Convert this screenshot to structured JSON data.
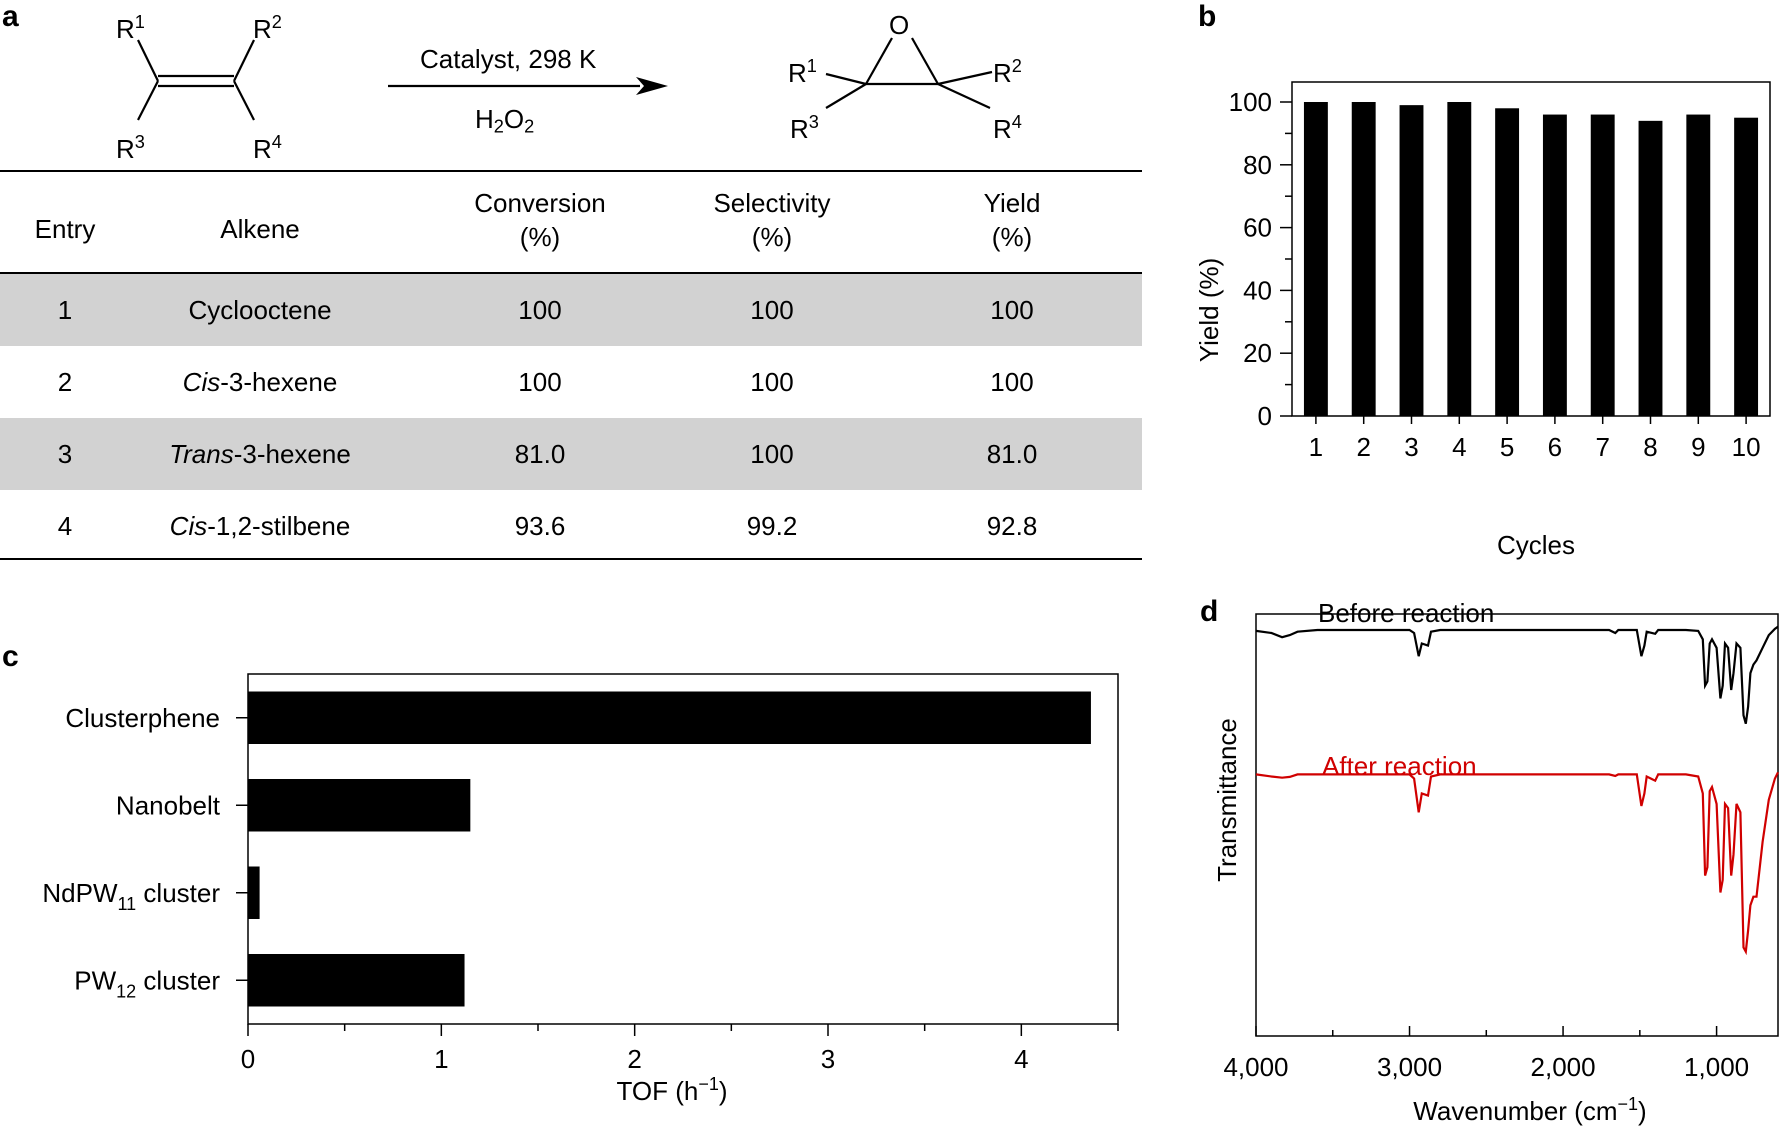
{
  "panels": {
    "a": "a",
    "b": "b",
    "c": "c",
    "d": "d"
  },
  "reaction": {
    "conditions_top": "Catalyst, 298 K",
    "reagent": {
      "main": "H",
      "sub1": "2",
      "mid": "O",
      "sub2": "2"
    },
    "oxygen": "O",
    "r_label": "R",
    "r_nums": [
      "1",
      "2",
      "3",
      "4"
    ]
  },
  "table": {
    "headers": [
      {
        "line1": "Entry",
        "line2": ""
      },
      {
        "line1": "Alkene",
        "line2": ""
      },
      {
        "line1": "Conversion",
        "line2": "(%)"
      },
      {
        "line1": "Selectivity",
        "line2": "(%)"
      },
      {
        "line1": "Yield",
        "line2": "(%)"
      }
    ],
    "rows": [
      {
        "entry": "1",
        "alkene_prefix": "",
        "alkene_rest": "Cyclooctene",
        "conversion": "100",
        "selectivity": "100",
        "yield": "100"
      },
      {
        "entry": "2",
        "alkene_prefix": "Cis",
        "alkene_rest": "-3-hexene",
        "conversion": "100",
        "selectivity": "100",
        "yield": "100"
      },
      {
        "entry": "3",
        "alkene_prefix": "Trans",
        "alkene_rest": "-3-hexene",
        "conversion": "81.0",
        "selectivity": "100",
        "yield": "81.0"
      },
      {
        "entry": "4",
        "alkene_prefix": "Cis",
        "alkene_rest": "-1,2-stilbene",
        "conversion": "93.6",
        "selectivity": "99.2",
        "yield": "92.8"
      }
    ]
  },
  "chart_data": [
    {
      "panel": "b",
      "type": "bar",
      "categories": [
        "1",
        "2",
        "3",
        "4",
        "5",
        "6",
        "7",
        "8",
        "9",
        "10"
      ],
      "values": [
        100,
        100,
        99,
        100,
        98,
        96,
        96,
        94,
        96,
        95
      ],
      "xlabel": "Cycles",
      "ylabel": "Yield (%)",
      "ylim": [
        0,
        100
      ],
      "yticks": [
        0,
        20,
        40,
        60,
        80,
        100
      ],
      "colors": {
        "bar": "#000000"
      }
    },
    {
      "panel": "c",
      "type": "bar",
      "orientation": "horizontal",
      "categories": [
        {
          "main": "Clusterphene",
          "sub": "",
          "tail": ""
        },
        {
          "main": "Nanobelt",
          "sub": "",
          "tail": ""
        },
        {
          "main": "NdPW",
          "sub": "11",
          "tail": " cluster"
        },
        {
          "main": "PW",
          "sub": "12",
          "tail": " cluster"
        }
      ],
      "values": [
        4.36,
        1.15,
        0.06,
        1.12
      ],
      "xlabel_main": "TOF (h",
      "xlabel_sup": "−1",
      "xlabel_tail": ")",
      "xlim": [
        0,
        4.5
      ],
      "xticks": [
        0,
        1,
        2,
        3,
        4
      ],
      "colors": {
        "bar": "#000000"
      }
    },
    {
      "panel": "d",
      "type": "line",
      "xlabel_main": "Wavenumber (cm",
      "xlabel_sup": "−1",
      "xlabel_tail": ")",
      "ylabel": "Transmittance",
      "xlim": [
        4000,
        600
      ],
      "xticks": [
        4000,
        3000,
        2000,
        1000
      ],
      "xtick_labels": [
        "4,000",
        "3,000",
        "2,000",
        "1,000"
      ],
      "series": [
        {
          "name": "Before reaction",
          "color": "#000000",
          "points": [
            [
              4000,
              0.96
            ],
            [
              3900,
              0.955
            ],
            [
              3830,
              0.945
            ],
            [
              3780,
              0.95
            ],
            [
              3730,
              0.958
            ],
            [
              3600,
              0.962
            ],
            [
              3400,
              0.962
            ],
            [
              3000,
              0.962
            ],
            [
              2970,
              0.955
            ],
            [
              2940,
              0.9
            ],
            [
              2920,
              0.93
            ],
            [
              2880,
              0.925
            ],
            [
              2860,
              0.958
            ],
            [
              2800,
              0.962
            ],
            [
              2400,
              0.962
            ],
            [
              2000,
              0.962
            ],
            [
              1700,
              0.962
            ],
            [
              1660,
              0.955
            ],
            [
              1640,
              0.962
            ],
            [
              1520,
              0.962
            ],
            [
              1490,
              0.9
            ],
            [
              1470,
              0.925
            ],
            [
              1455,
              0.958
            ],
            [
              1400,
              0.953
            ],
            [
              1380,
              0.962
            ],
            [
              1200,
              0.962
            ],
            [
              1120,
              0.96
            ],
            [
              1090,
              0.94
            ],
            [
              1075,
              0.83
            ],
            [
              1060,
              0.84
            ],
            [
              1045,
              0.93
            ],
            [
              1030,
              0.94
            ],
            [
              1000,
              0.92
            ],
            [
              975,
              0.8
            ],
            [
              960,
              0.83
            ],
            [
              945,
              0.93
            ],
            [
              925,
              0.92
            ],
            [
              905,
              0.82
            ],
            [
              890,
              0.86
            ],
            [
              870,
              0.93
            ],
            [
              845,
              0.92
            ],
            [
              825,
              0.76
            ],
            [
              810,
              0.74
            ],
            [
              795,
              0.78
            ],
            [
              780,
              0.86
            ],
            [
              760,
              0.88
            ],
            [
              740,
              0.89
            ],
            [
              700,
              0.92
            ],
            [
              660,
              0.95
            ],
            [
              620,
              0.965
            ],
            [
              600,
              0.97
            ]
          ]
        },
        {
          "name": "After reaction",
          "color": "#d00000",
          "points": [
            [
              4000,
              0.62
            ],
            [
              3900,
              0.615
            ],
            [
              3830,
              0.612
            ],
            [
              3780,
              0.614
            ],
            [
              3730,
              0.62
            ],
            [
              3600,
              0.62
            ],
            [
              3400,
              0.62
            ],
            [
              3000,
              0.62
            ],
            [
              2970,
              0.61
            ],
            [
              2940,
              0.53
            ],
            [
              2920,
              0.575
            ],
            [
              2880,
              0.57
            ],
            [
              2860,
              0.615
            ],
            [
              2800,
              0.62
            ],
            [
              2400,
              0.62
            ],
            [
              2000,
              0.62
            ],
            [
              1700,
              0.62
            ],
            [
              1660,
              0.616
            ],
            [
              1640,
              0.62
            ],
            [
              1520,
              0.62
            ],
            [
              1490,
              0.545
            ],
            [
              1470,
              0.575
            ],
            [
              1455,
              0.615
            ],
            [
              1400,
              0.605
            ],
            [
              1380,
              0.62
            ],
            [
              1200,
              0.62
            ],
            [
              1120,
              0.615
            ],
            [
              1090,
              0.575
            ],
            [
              1075,
              0.38
            ],
            [
              1060,
              0.4
            ],
            [
              1045,
              0.58
            ],
            [
              1030,
              0.59
            ],
            [
              1000,
              0.55
            ],
            [
              975,
              0.34
            ],
            [
              960,
              0.37
            ],
            [
              945,
              0.55
            ],
            [
              925,
              0.54
            ],
            [
              905,
              0.38
            ],
            [
              890,
              0.43
            ],
            [
              870,
              0.55
            ],
            [
              845,
              0.53
            ],
            [
              825,
              0.21
            ],
            [
              810,
              0.2
            ],
            [
              795,
              0.25
            ],
            [
              780,
              0.31
            ],
            [
              760,
              0.33
            ],
            [
              740,
              0.33
            ],
            [
              700,
              0.46
            ],
            [
              660,
              0.56
            ],
            [
              620,
              0.61
            ],
            [
              600,
              0.625
            ]
          ]
        }
      ]
    }
  ]
}
